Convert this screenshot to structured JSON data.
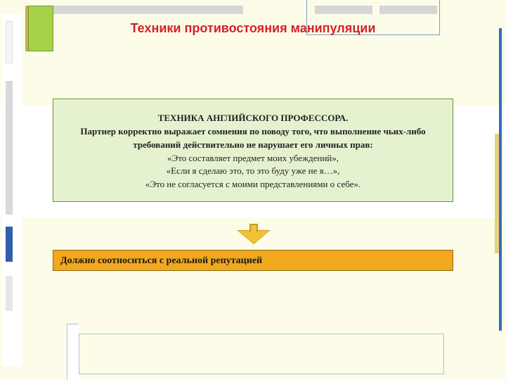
{
  "colors": {
    "page_bg": "#fcfce8",
    "title_color": "#d2232a",
    "content_bg": "#e5f2d0",
    "content_border": "#6d8f3a",
    "orange_bar_bg": "#f1a81e",
    "orange_bar_border": "#8a6a12",
    "arrow_fill": "#f0c23a",
    "arrow_border": "#c79a1e",
    "accent_blue": "#2f6fb7",
    "accent_green": "#a5d24b",
    "grey_bar": "#d6d6d6"
  },
  "typography": {
    "title_fontsize": 18,
    "body_fontsize": 13,
    "bar_fontsize": 14,
    "font_family": "Comic Sans MS"
  },
  "title": "Техники противостояния манипуляции",
  "content": {
    "heading": "ТЕХНИКА АНГЛИЙСКОГО ПРОФЕССОРА.",
    "bold_line": "Партнер корректно выражает сомнения по поводу того, что выполнение чьих-либо требований действительно не нарушает его личных прав:",
    "quotes": [
      "«Это составляет предмет моих убеждений»,",
      "«Если я сделаю это, то это буду уже не я…»,",
      "«Это не согласуется с моими представлениями о себе»."
    ]
  },
  "footer_bar": "Должно соотноситься с реальной репутацией"
}
